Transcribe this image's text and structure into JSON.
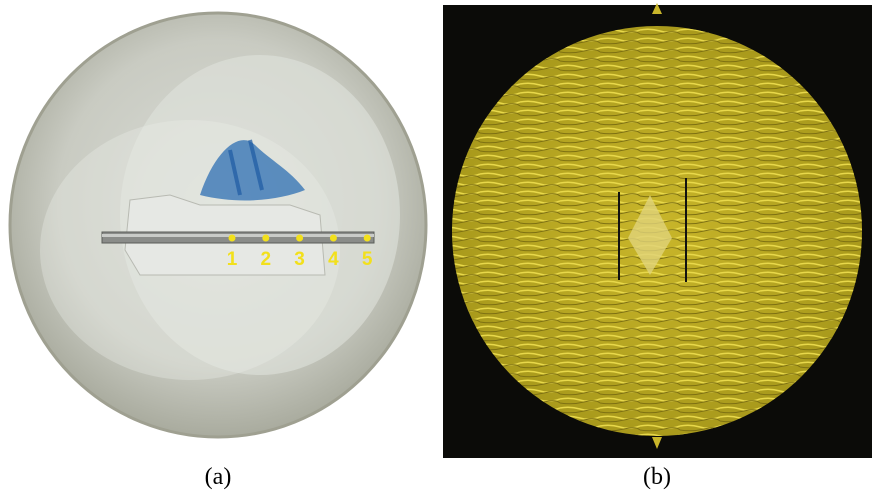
{
  "panels": [
    {
      "label": "(a)",
      "points": [
        "1",
        "2",
        "3",
        "4",
        "5"
      ]
    },
    {
      "label": "(b)"
    }
  ]
}
